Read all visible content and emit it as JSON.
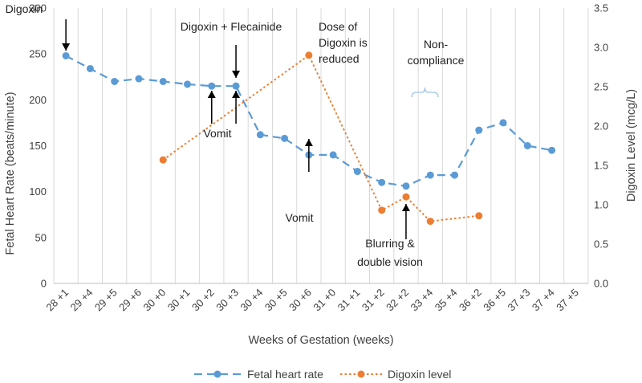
{
  "chart_data": {
    "type": "line",
    "categories": [
      "28 +1",
      "29 +4",
      "29 +5",
      "29 +6",
      "30 +0",
      "30 +1",
      "30 +2",
      "30 +3",
      "30 +4",
      "30 +5",
      "30 +6",
      "31 +0",
      "31 +1",
      "31 +2",
      "32 +2",
      "33 +4",
      "35 +4",
      "36 +2",
      "36 +5",
      "37 +3",
      "37 +4",
      "37 +5"
    ],
    "xlabel": "Weeks of Gestation (weeks)",
    "ylabel": "Fetal Heart Rate (beats/minute)",
    "y2label": "Digoxin Level (mcg/L)",
    "ylim": [
      0,
      300
    ],
    "yticks": [
      "0",
      "50",
      "100",
      "150",
      "200",
      "250",
      "300"
    ],
    "y2lim": [
      0,
      3.5
    ],
    "y2ticks": [
      "0.0",
      "0.5",
      "1.0",
      "1.5",
      "2.0",
      "2.5",
      "3.0",
      "3.5"
    ],
    "grid": "vertical",
    "legend_position": "bottom",
    "series": [
      {
        "name": "Fetal heart rate",
        "axis": "left",
        "color": "#5B9BD5",
        "style": "dashed",
        "values": [
          248,
          234,
          220,
          223,
          220,
          217,
          215,
          215,
          162,
          158,
          140,
          140,
          122,
          110,
          106,
          118,
          118,
          167,
          175,
          150,
          145,
          null
        ]
      },
      {
        "name": "Digoxin level",
        "axis": "right",
        "color": "#ED7D31",
        "style": "dotted",
        "values": [
          null,
          null,
          null,
          null,
          1.57,
          null,
          null,
          null,
          null,
          null,
          2.9,
          null,
          null,
          0.93,
          1.1,
          0.79,
          null,
          0.86,
          null,
          null,
          null,
          null
        ]
      }
    ],
    "annotations": [
      {
        "id": "digoxin",
        "lines": [
          "Digoxin"
        ],
        "x_index": 0,
        "arrow": "down"
      },
      {
        "id": "digoxin-flec",
        "lines": [
          "Digoxin + Flecainide"
        ],
        "x_index": 7,
        "arrow": "down"
      },
      {
        "id": "vomit-1",
        "lines": [
          "Vomit"
        ],
        "x_index": 6.5,
        "arrows": "up"
      },
      {
        "id": "dose-reduced",
        "lines": [
          "Dose of",
          "Digoxin is",
          "reduced"
        ],
        "x_index": 10
      },
      {
        "id": "noncompliance",
        "lines": [
          "Non-",
          "compliance"
        ],
        "x_index": 15.5,
        "bracket": true
      },
      {
        "id": "vomit-2",
        "lines": [
          "Vomit"
        ],
        "x_index": 10,
        "arrow": "up"
      },
      {
        "id": "blurring",
        "lines": [
          "Blurring &",
          "double vision"
        ],
        "x_index": 14,
        "arrow": "up"
      }
    ]
  }
}
